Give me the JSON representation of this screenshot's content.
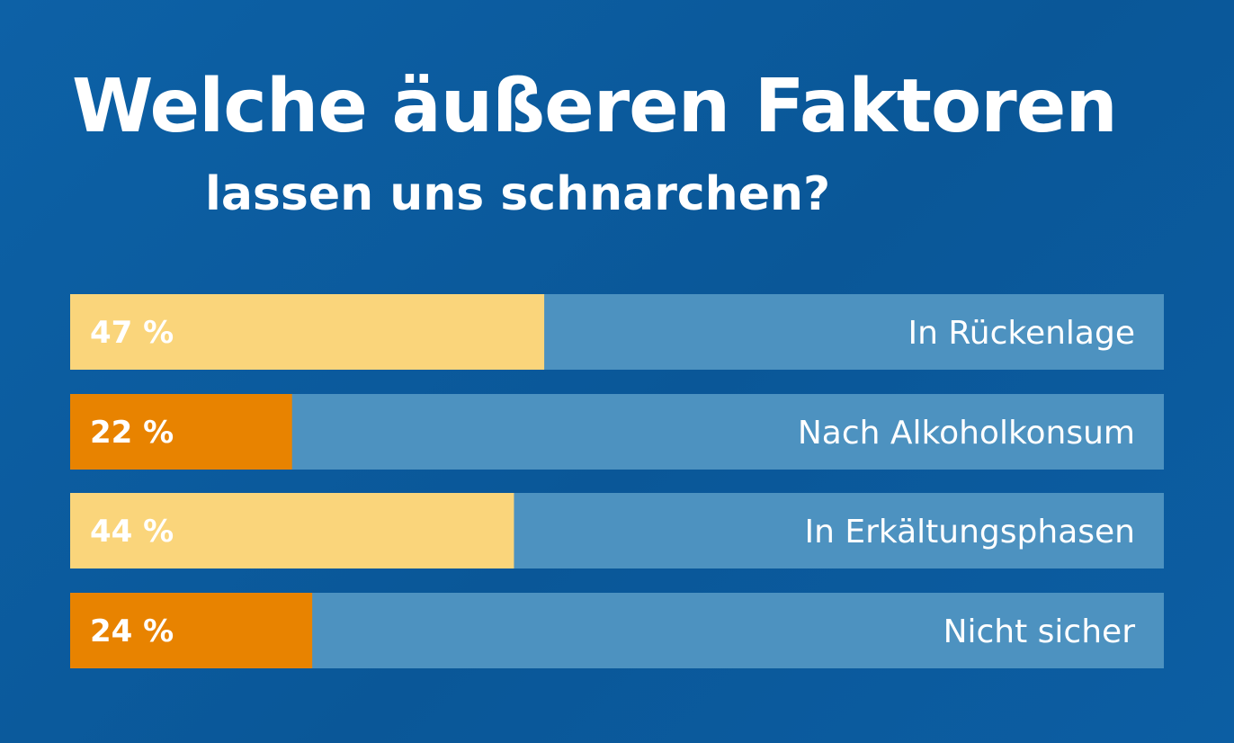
{
  "chart_data": {
    "type": "bar",
    "orientation": "horizontal",
    "title": "Welche äußeren Faktoren",
    "subtitle": "lassen uns schnarchen?",
    "categories": [
      "In Rückenlage",
      "Nach Alkoholkonsum",
      "In Erkältungsphasen",
      "Nicht sicher"
    ],
    "values": [
      47,
      22,
      44,
      24
    ],
    "value_labels": [
      "47 %",
      "22 %",
      "44 %",
      "24 %"
    ],
    "unit": "%",
    "xlim": [
      0,
      100
    ],
    "grid": false,
    "legend": "none",
    "colors": {
      "bars": [
        "#fad57b",
        "#e88300",
        "#fad57b",
        "#e88300"
      ],
      "track": "#4d92c0",
      "background": "#0b5b9f",
      "text": "#ffffff"
    }
  }
}
